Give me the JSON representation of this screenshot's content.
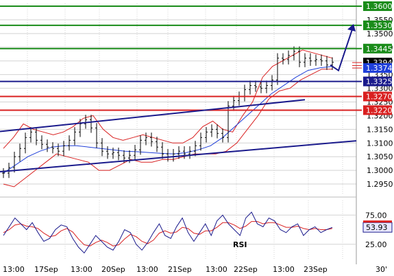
{
  "chart_data": [
    {
      "type": "candlestick",
      "title": "",
      "x_tick_labels": [
        "13:00",
        "17Sep",
        "13:00",
        "20Sep",
        "13:00",
        "21Sep",
        "13:00",
        "22Sep",
        "13:00",
        "23Sep"
      ],
      "timeframe_label": "30'",
      "ylim": [
        1.2915,
        1.361
      ],
      "price_tick_labels": [
        "1.3550",
        "1.3500",
        "1.3450",
        "1.3400",
        "1.3350",
        "1.3300",
        "1.3250",
        "1.3200",
        "1.3150",
        "1.3100",
        "1.3050",
        "1.3000",
        "1.2950"
      ],
      "price_tick_values": [
        1.355,
        1.35,
        1.345,
        1.34,
        1.335,
        1.33,
        1.325,
        1.32,
        1.315,
        1.31,
        1.305,
        1.3,
        1.295
      ],
      "close_series": [
        1.299,
        1.301,
        1.305,
        1.308,
        1.312,
        1.314,
        1.311,
        1.3095,
        1.3085,
        1.308,
        1.307,
        1.309,
        1.311,
        1.314,
        1.317,
        1.3185,
        1.3155,
        1.31,
        1.307,
        1.306,
        1.3065,
        1.3055,
        1.3045,
        1.3055,
        1.3075,
        1.311,
        1.312,
        1.3105,
        1.3085,
        1.306,
        1.305,
        1.306,
        1.307,
        1.306,
        1.307,
        1.309,
        1.312,
        1.314,
        1.315,
        1.3135,
        1.312,
        1.3235,
        1.3255,
        1.327,
        1.3295,
        1.331,
        1.3305,
        1.33,
        1.331,
        1.333,
        1.341,
        1.3405,
        1.342,
        1.3435,
        1.3395,
        1.341,
        1.34,
        1.3405,
        1.34,
        1.3385,
        1.3395
      ],
      "bollinger_upper": [
        1.308,
        1.312,
        1.317,
        1.315,
        1.314,
        1.313,
        1.314,
        1.316,
        1.319,
        1.32,
        1.315,
        1.312,
        1.311,
        1.312,
        1.313,
        1.312,
        1.311,
        1.31,
        1.31,
        1.312,
        1.316,
        1.318,
        1.315,
        1.314,
        1.32,
        1.325,
        1.334,
        1.338,
        1.34,
        1.342,
        1.344,
        1.343,
        1.342,
        1.341
      ],
      "bollinger_lower": [
        1.295,
        1.294,
        1.297,
        1.3,
        1.303,
        1.306,
        1.305,
        1.304,
        1.303,
        1.3,
        1.3,
        1.302,
        1.304,
        1.303,
        1.303,
        1.304,
        1.304,
        1.305,
        1.306,
        1.306,
        1.306,
        1.307,
        1.31,
        1.315,
        1.32,
        1.326,
        1.329,
        1.33,
        1.333,
        1.335,
        1.337,
        1.337
      ],
      "moving_average": [
        1.299,
        1.302,
        1.305,
        1.307,
        1.3085,
        1.309,
        1.309,
        1.3085,
        1.308,
        1.3075,
        1.307,
        1.3068,
        1.3065,
        1.3062,
        1.306,
        1.3065,
        1.3075,
        1.309,
        1.312,
        1.316,
        1.32,
        1.324,
        1.328,
        1.331,
        1.334,
        1.3365,
        1.3375,
        1.338
      ],
      "horizontal_levels": [
        {
          "value": 1.36,
          "label": "1.3600",
          "color": "#1a8c1a",
          "kind": "resistance"
        },
        {
          "value": 1.353,
          "label": "1.3530",
          "color": "#1a8c1a",
          "kind": "resistance"
        },
        {
          "value": 1.3445,
          "label": "1.3445",
          "color": "#1a8c1a",
          "kind": "resistance"
        },
        {
          "value": 1.3325,
          "label": "1.3325",
          "color": "#1a1a8c",
          "kind": "pivot"
        },
        {
          "value": 1.327,
          "label": "1.3270",
          "color": "#d92020",
          "kind": "support"
        },
        {
          "value": 1.322,
          "label": "1.3220",
          "color": "#d92020",
          "kind": "support"
        }
      ],
      "current_price_tags": [
        {
          "value": 1.3394,
          "label": "1.3394",
          "bg": "#000000"
        },
        {
          "value": 1.3374,
          "label": "1.3374",
          "bg": "#1f3fd9"
        }
      ],
      "trendlines": [
        {
          "from": [
            "start",
            1.3142
          ],
          "to": [
            "near-end",
            1.3258
          ],
          "color": "#1a1a8c"
        },
        {
          "from": [
            "start",
            1.2995
          ],
          "to": [
            "end",
            1.3108
          ],
          "color": "#1a1a8c"
        }
      ],
      "arrow": {
        "from": [
          1.337
        ],
        "to": [
          1.353
        ],
        "color": "#1a1a8c"
      }
    },
    {
      "type": "line",
      "name_label": "RSI",
      "ylim": [
        0,
        100
      ],
      "y_tick_labels": [
        "75.00",
        "25.00"
      ],
      "y_tick_values": [
        75,
        25
      ],
      "current_value_label": "53.93",
      "rsi_values": [
        40,
        55,
        70,
        60,
        50,
        62,
        45,
        30,
        35,
        50,
        58,
        55,
        35,
        20,
        10,
        25,
        40,
        30,
        20,
        15,
        30,
        50,
        45,
        25,
        15,
        28,
        45,
        60,
        40,
        35,
        55,
        70,
        45,
        30,
        45,
        60,
        40,
        65,
        75,
        60,
        50,
        40,
        70,
        80,
        60,
        55,
        70,
        65,
        50,
        45,
        55,
        60,
        40,
        50,
        55,
        45,
        50,
        53.93
      ],
      "signal_values": [
        45,
        50,
        58,
        60,
        56,
        55,
        52,
        44,
        38,
        40,
        48,
        52,
        46,
        34,
        24,
        22,
        28,
        32,
        28,
        22,
        24,
        34,
        42,
        38,
        30,
        26,
        32,
        44,
        48,
        44,
        46,
        54,
        52,
        44,
        42,
        48,
        48,
        54,
        62,
        62,
        58,
        52,
        56,
        64,
        64,
        60,
        62,
        62,
        58,
        54,
        54,
        56,
        52,
        50,
        52,
        50,
        50,
        52
      ]
    }
  ],
  "colors": {
    "grid": "#d3d3d3",
    "price": "#000000",
    "bollinger": "#d92020",
    "ma": "#1f3fd9",
    "trend": "#1a1a8c",
    "rsi_line": "#1a1a8c",
    "rsi_signal": "#d92020"
  }
}
